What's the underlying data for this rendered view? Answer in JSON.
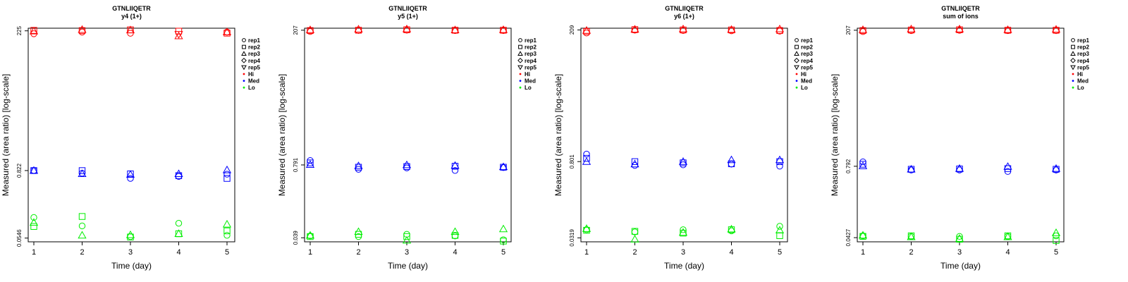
{
  "chart_data": [
    {
      "type": "scatter",
      "title": "GTNLIIQETR",
      "subtitle": "y4 (1+)",
      "xlabel": "Time (day)",
      "ylabel": "Measured (area ratio) [log-scale]",
      "x_ticks": [
        "1",
        "2",
        "3",
        "4",
        "5"
      ],
      "y_tick_labels": [
        "0.0546",
        "0.822",
        "225"
      ],
      "y_tick_values": [
        0.0546,
        0.822,
        225
      ],
      "ylim": [
        0.047,
        250
      ],
      "legend": [
        "rep1",
        "rep2",
        "rep3",
        "rep4",
        "rep5",
        "Hi",
        "Med",
        "Lo"
      ],
      "series": [
        {
          "name": "Hi",
          "color": "#ff0000",
          "points": [
            [
              1,
              0,
              200
            ],
            [
              1,
              1,
              229
            ],
            [
              1,
              2,
              222
            ],
            [
              2,
              0,
              214
            ],
            [
              2,
              1,
              227
            ],
            [
              2,
              2,
              236
            ],
            [
              3,
              0,
              204
            ],
            [
              3,
              1,
              234
            ],
            [
              3,
              2,
              232
            ],
            [
              4,
              1,
              222
            ],
            [
              4,
              2,
              183
            ],
            [
              4,
              4,
              196
            ],
            [
              5,
              0,
              214
            ],
            [
              5,
              1,
              205
            ],
            [
              5,
              2,
              214
            ]
          ]
        },
        {
          "name": "Med",
          "color": "#0000ff",
          "points": [
            [
              1,
              0,
              0.822
            ],
            [
              1,
              1,
              0.822
            ],
            [
              1,
              2,
              0.822
            ],
            [
              2,
              0,
              0.74
            ],
            [
              2,
              1,
              0.82
            ],
            [
              2,
              2,
              0.72
            ],
            [
              3,
              0,
              0.6
            ],
            [
              3,
              1,
              0.72
            ],
            [
              3,
              2,
              0.7
            ],
            [
              4,
              0,
              0.65
            ],
            [
              4,
              1,
              0.67
            ],
            [
              4,
              2,
              0.72
            ],
            [
              5,
              0,
              0.71
            ],
            [
              5,
              1,
              0.6
            ],
            [
              5,
              2,
              0.84
            ]
          ]
        },
        {
          "name": "Lo",
          "color": "#00ee00",
          "points": [
            [
              1,
              0,
              0.125
            ],
            [
              1,
              1,
              0.087
            ],
            [
              1,
              2,
              0.102
            ],
            [
              2,
              0,
              0.089
            ],
            [
              2,
              1,
              0.13
            ],
            [
              2,
              2,
              0.061
            ],
            [
              3,
              0,
              0.058
            ],
            [
              3,
              1,
              0.057
            ],
            [
              3,
              2,
              0.062
            ],
            [
              4,
              0,
              0.099
            ],
            [
              4,
              1,
              0.065
            ],
            [
              4,
              2,
              0.065
            ],
            [
              5,
              0,
              0.061
            ],
            [
              5,
              1,
              0.073
            ],
            [
              5,
              2,
              0.095
            ]
          ]
        }
      ]
    },
    {
      "type": "scatter",
      "title": "GTNLIIQETR",
      "subtitle": "y5 (1+)",
      "xlabel": "Time (day)",
      "ylabel": "Measured (area ratio) [log-scale]",
      "x_ticks": [
        "1",
        "2",
        "3",
        "4",
        "5"
      ],
      "y_tick_labels": [
        "0.039",
        "0.791",
        "207"
      ],
      "y_tick_values": [
        0.039,
        0.791,
        207
      ],
      "ylim": [
        0.033,
        225
      ],
      "legend": [
        "rep1",
        "rep2",
        "rep3",
        "rep4",
        "rep5",
        "Hi",
        "Med",
        "Lo"
      ],
      "series": [
        {
          "name": "Hi",
          "color": "#ff0000",
          "points": [
            [
              1,
              0,
              196
            ],
            [
              1,
              1,
              204
            ],
            [
              1,
              2,
              210
            ],
            [
              2,
              0,
              204
            ],
            [
              2,
              1,
              207
            ],
            [
              2,
              2,
              215
            ],
            [
              3,
              0,
              207
            ],
            [
              3,
              1,
              211
            ],
            [
              3,
              2,
              217
            ],
            [
              4,
              0,
              204
            ],
            [
              4,
              1,
              207
            ],
            [
              4,
              2,
              209
            ],
            [
              5,
              0,
              204
            ],
            [
              5,
              1,
              207
            ],
            [
              5,
              2,
              211
            ]
          ]
        },
        {
          "name": "Med",
          "color": "#0000ff",
          "points": [
            [
              1,
              0,
              0.95
            ],
            [
              1,
              1,
              0.86
            ],
            [
              1,
              2,
              0.8
            ],
            [
              2,
              0,
              0.66
            ],
            [
              2,
              1,
              0.72
            ],
            [
              2,
              2,
              0.76
            ],
            [
              3,
              0,
              0.7
            ],
            [
              3,
              1,
              0.74
            ],
            [
              3,
              2,
              0.79
            ],
            [
              4,
              0,
              0.63
            ],
            [
              4,
              1,
              0.75
            ],
            [
              4,
              2,
              0.77
            ],
            [
              5,
              0,
              0.71
            ],
            [
              5,
              1,
              0.72
            ],
            [
              5,
              2,
              0.73
            ]
          ]
        },
        {
          "name": "Lo",
          "color": "#00ee00",
          "points": [
            [
              1,
              0,
              0.042
            ],
            [
              1,
              1,
              0.041
            ],
            [
              1,
              2,
              0.043
            ],
            [
              2,
              0,
              0.041
            ],
            [
              2,
              1,
              0.045
            ],
            [
              2,
              2,
              0.05
            ],
            [
              3,
              0,
              0.045
            ],
            [
              3,
              1,
              0.041
            ],
            [
              3,
              2,
              0.035
            ],
            [
              4,
              0,
              0.042
            ],
            [
              4,
              1,
              0.043
            ],
            [
              4,
              2,
              0.05
            ],
            [
              5,
              0,
              0.036
            ],
            [
              5,
              1,
              0.034
            ],
            [
              5,
              2,
              0.056
            ]
          ]
        }
      ]
    },
    {
      "type": "scatter",
      "title": "GTNLIIQETR",
      "subtitle": "y6 (1+)",
      "xlabel": "Time (day)",
      "ylabel": "Measured (area ratio) [log-scale]",
      "x_ticks": [
        "1",
        "2",
        "3",
        "4",
        "5"
      ],
      "y_tick_labels": [
        "0.0319",
        "0.801",
        "209"
      ],
      "y_tick_values": [
        0.0319,
        0.801,
        209
      ],
      "ylim": [
        0.027,
        225
      ],
      "legend": [
        "rep1",
        "rep2",
        "rep3",
        "rep4",
        "rep5",
        "Hi",
        "Med",
        "Lo"
      ],
      "series": [
        {
          "name": "Hi",
          "color": "#ff0000",
          "points": [
            [
              1,
              0,
              184
            ],
            [
              1,
              1,
              196
            ],
            [
              1,
              2,
              204
            ],
            [
              2,
              0,
              207
            ],
            [
              2,
              1,
              212
            ],
            [
              2,
              2,
              214
            ],
            [
              3,
              0,
              204
            ],
            [
              3,
              1,
              209
            ],
            [
              3,
              2,
              217
            ],
            [
              4,
              0,
              202
            ],
            [
              4,
              1,
              209
            ],
            [
              4,
              2,
              212
            ],
            [
              5,
              0,
              199
            ],
            [
              5,
              1,
              204
            ],
            [
              5,
              2,
              217
            ]
          ]
        },
        {
          "name": "Med",
          "color": "#0000ff",
          "points": [
            [
              1,
              0,
              1.1
            ],
            [
              1,
              1,
              0.92
            ],
            [
              1,
              2,
              0.8
            ],
            [
              2,
              0,
              0.68
            ],
            [
              2,
              1,
              0.8
            ],
            [
              2,
              2,
              0.72
            ],
            [
              3,
              0,
              0.7
            ],
            [
              3,
              1,
              0.76
            ],
            [
              3,
              2,
              0.8
            ],
            [
              4,
              0,
              0.72
            ],
            [
              4,
              1,
              0.73
            ],
            [
              4,
              2,
              0.86
            ],
            [
              5,
              0,
              0.66
            ],
            [
              5,
              1,
              0.8
            ],
            [
              5,
              2,
              0.86
            ]
          ]
        },
        {
          "name": "Lo",
          "color": "#00ee00",
          "points": [
            [
              1,
              0,
              0.045
            ],
            [
              1,
              1,
              0.044
            ],
            [
              1,
              2,
              0.047
            ],
            [
              2,
              0,
              0.041
            ],
            [
              2,
              1,
              0.042
            ],
            [
              2,
              2,
              0.03
            ],
            [
              3,
              0,
              0.045
            ],
            [
              3,
              1,
              0.039
            ],
            [
              3,
              2,
              0.04
            ],
            [
              4,
              0,
              0.043
            ],
            [
              4,
              1,
              0.045
            ],
            [
              4,
              2,
              0.046
            ],
            [
              5,
              0,
              0.052
            ],
            [
              5,
              1,
              0.035
            ],
            [
              5,
              2,
              0.044
            ]
          ]
        }
      ]
    },
    {
      "type": "scatter",
      "title": "GTNLIIQETR",
      "subtitle": "sum of ions",
      "xlabel": "Time (day)",
      "ylabel": "Measured (area ratio) [log-scale]",
      "x_ticks": [
        "1",
        "2",
        "3",
        "4",
        "5"
      ],
      "y_tick_labels": [
        "0.0427",
        "0.792",
        "207"
      ],
      "y_tick_values": [
        0.0427,
        0.792,
        207
      ],
      "ylim": [
        0.036,
        225
      ],
      "legend": [
        "rep1",
        "rep2",
        "rep3",
        "rep4",
        "rep5",
        "Hi",
        "Med",
        "Lo"
      ],
      "series": [
        {
          "name": "Hi",
          "color": "#ff0000",
          "points": [
            [
              1,
              0,
              196
            ],
            [
              1,
              1,
              204
            ],
            [
              1,
              2,
              211
            ],
            [
              2,
              0,
              204
            ],
            [
              2,
              1,
              209
            ],
            [
              2,
              2,
              217
            ],
            [
              3,
              0,
              207
            ],
            [
              3,
              1,
              211
            ],
            [
              3,
              2,
              217
            ],
            [
              4,
              0,
              204
            ],
            [
              4,
              1,
              207
            ],
            [
              4,
              2,
              211
            ],
            [
              5,
              0,
              204
            ],
            [
              5,
              1,
              207
            ],
            [
              5,
              2,
              214
            ]
          ]
        },
        {
          "name": "Med",
          "color": "#0000ff",
          "points": [
            [
              1,
              0,
              0.95
            ],
            [
              1,
              1,
              0.86
            ],
            [
              1,
              2,
              0.8
            ],
            [
              2,
              0,
              0.68
            ],
            [
              2,
              1,
              0.7
            ],
            [
              2,
              2,
              0.7
            ],
            [
              3,
              0,
              0.68
            ],
            [
              3,
              1,
              0.71
            ],
            [
              3,
              2,
              0.72
            ],
            [
              4,
              0,
              0.64
            ],
            [
              4,
              1,
              0.72
            ],
            [
              4,
              2,
              0.78
            ],
            [
              5,
              0,
              0.68
            ],
            [
              5,
              1,
              0.7
            ],
            [
              5,
              2,
              0.72
            ]
          ]
        },
        {
          "name": "Lo",
          "color": "#00ee00",
          "points": [
            [
              1,
              0,
              0.046
            ],
            [
              1,
              1,
              0.045
            ],
            [
              1,
              2,
              0.047
            ],
            [
              2,
              0,
              0.045
            ],
            [
              2,
              1,
              0.046
            ],
            [
              2,
              2,
              0.044
            ],
            [
              3,
              0,
              0.045
            ],
            [
              3,
              1,
              0.04
            ],
            [
              3,
              2,
              0.041
            ],
            [
              4,
              0,
              0.045
            ],
            [
              4,
              1,
              0.046
            ],
            [
              4,
              2,
              0.044
            ],
            [
              5,
              0,
              0.046
            ],
            [
              5,
              1,
              0.038
            ],
            [
              5,
              2,
              0.052
            ]
          ]
        }
      ]
    }
  ],
  "colors": {
    "Hi": "#ff0000",
    "Med": "#0000ff",
    "Lo": "#00ee00"
  }
}
